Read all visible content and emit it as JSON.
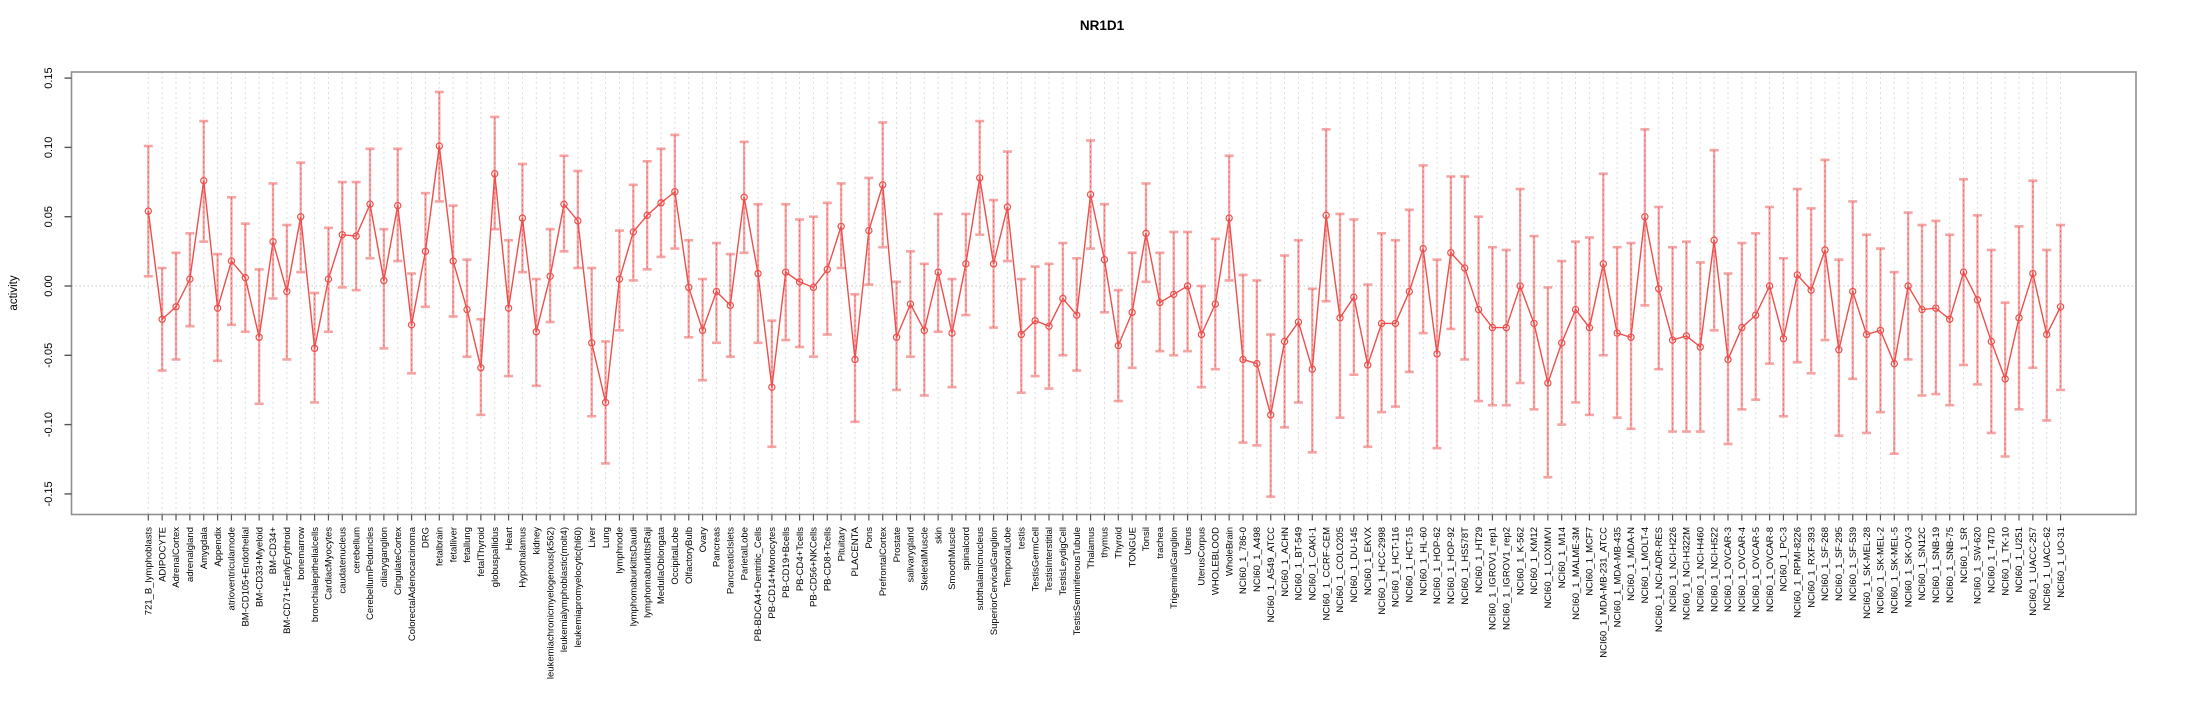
{
  "page": {
    "title": "NR1D1"
  },
  "chart_data": {
    "type": "line",
    "title": "NR1D1",
    "xlabel": "",
    "ylabel": "activity",
    "ylim": [
      -0.165,
      0.155
    ],
    "grid": "vertical dashed gridline per category; dotted horizontal line at y=0",
    "legend": "none",
    "marker": "open-circle with vertical error bars and caps",
    "series_color": "#ee4f4c",
    "errorbar_color": "#f5a3a3",
    "grid_color": "#dcdcdc",
    "box_color": "#8f8f8f",
    "ytick_values": [
      -0.15,
      -0.1,
      -0.05,
      0.0,
      0.05,
      0.1,
      0.15
    ],
    "ytick_labels": [
      "-0.15",
      "-0.10",
      "-0.05",
      "0.00",
      "0.05",
      "0.10",
      "0.15"
    ],
    "categories": [
      "721_B_lymphoblasts",
      "ADIPOCYTE",
      "AdrenalCortex",
      "adrenalgland",
      "Amygdala",
      "Appendix",
      "atrioventricularnode",
      "BM-CD105+Endothelial",
      "BM-CD33+Myeloid",
      "BM-CD34+",
      "BM-CD71+EarlyErythroid",
      "bonemarrow",
      "bronchialepithelialcells",
      "CardiacMyocytes",
      "caudatenucleus",
      "cerebellum",
      "CerebellumPeduncles",
      "ciliaryganglion",
      "CingulateCortex",
      "ColorectalAdenocarcinoma",
      "DRG",
      "fetalbrain",
      "fetalliver",
      "fetallung",
      "fetalThyroid",
      "globuspallidus",
      "Heart",
      "Hypothalamus",
      "kidney",
      "leukemiachronicmyelogenous(k562)",
      "leukemialymphoblastic(molt4)",
      "leukemiapromyelocytic(hl60)",
      "Liver",
      "Lung",
      "lymphnode",
      "lymphomaburkittsDaudi",
      "lymphomaburkittsRaji",
      "MedullaOblongata",
      "OccipitalLobe",
      "OlfactoryBulb",
      "Ovary",
      "Pancreas",
      "PancreaticIslets",
      "ParietalLobe",
      "PB-BDCA4+Dentritic_Cells",
      "PB-CD14+Monocytes",
      "PB-CD19+Bcells",
      "PB-CD4+Tcells",
      "PB-CD56+NKCells",
      "PB-CD8+Tcells",
      "Pituitary",
      "PLACENTA",
      "Pons",
      "PrefrontalCortex",
      "Prostate",
      "salivarygland",
      "SkeletalMuscle",
      "skin",
      "SmoothMuscle",
      "spinalcord",
      "subthalamicnucleus",
      "SuperiorCervicalGanglion",
      "TemporalLobe",
      "testis",
      "TestisGermCell",
      "TestisInterstitial",
      "TestisLeydigCell",
      "TestisSeminiferousTubule",
      "Thalamus",
      "thymus",
      "Thyroid",
      "TONGUE",
      "Tonsil",
      "trachea",
      "TrigeminalGanglion",
      "Uterus",
      "UterusCorpus",
      "WHOLEBLOOD",
      "WholeBrain",
      "NCI60_1_786-0",
      "NCI60_1_A498",
      "NCI60_1_A549_ATCC",
      "NCI60_1_ACHN",
      "NCI60_1_BT-549",
      "NCI60_1_CAKI-1",
      "NCI60_1_CCRF-CEM",
      "NCI60_1_COLO205",
      "NCI60_1_DU-145",
      "NCI60_1_EKVX",
      "NCI60_1_HCC-2998",
      "NCI60_1_HCT-116",
      "NCI60_1_HCT-15",
      "NCI60_1_HL-60",
      "NCI60_1_HOP-62",
      "NCI60_1_HOP-92",
      "NCI60_1_HS578T",
      "NCI60_1_HT29",
      "NCI60_1_IGROV1_rep1",
      "NCI60_1_IGROV1_rep2",
      "NCI60_1_K-562",
      "NCI60_1_KM12",
      "NCI60_1_LOXIMVI",
      "NCI60_1_M14",
      "NCI60_1_MALME-3M",
      "NCI60_1_MCF7",
      "NCI60_1_MDA-MB-231_ATCC",
      "NCI60_1_MDA-MB-435",
      "NCI60_1_MDA-N",
      "NCI60_1_MOLT-4",
      "NCI60_1_NCI-ADR-RES",
      "NCI60_1_NCI-H226",
      "NCI60_1_NCI-H322M",
      "NCI60_1_NCI-H460",
      "NCI60_1_NCI-H522",
      "NCI60_1_OVCAR-3",
      "NCI60_1_OVCAR-4",
      "NCI60_1_OVCAR-5",
      "NCI60_1_OVCAR-8",
      "NCI60_1_PC-3",
      "NCI60_1_RPMI-8226",
      "NCI60_1_RXF-393",
      "NCI60_1_SF-268",
      "NCI60_1_SF-295",
      "NCI60_1_SF-539",
      "NCI60_1_SK-MEL-28",
      "NCI60_1_SK-MEL-2",
      "NCI60_1_SK-MEL-5",
      "NCI60_1_SK-OV-3",
      "NCI60_1_SN12C",
      "NCI60_1_SNB-19",
      "NCI60_1_SNB-75",
      "NCI60_1_SR",
      "NCI60_1_SW-620",
      "NCI60_1_T47D",
      "NCI60_1_TK-10",
      "NCI60_1_U251",
      "NCI60_1_UACC-257",
      "NCI60_1_UACC-62",
      "NCI60_1_UO-31"
    ],
    "series": [
      {
        "name": "activity",
        "values": [
          0.054,
          -0.024,
          -0.015,
          0.005,
          0.076,
          -0.016,
          0.018,
          0.006,
          -0.037,
          0.032,
          -0.004,
          0.05,
          -0.045,
          0.005,
          0.037,
          0.036,
          0.059,
          0.004,
          0.058,
          -0.028,
          0.025,
          0.101,
          0.018,
          -0.017,
          -0.059,
          0.081,
          -0.016,
          0.049,
          -0.033,
          0.007,
          0.059,
          0.047,
          -0.041,
          -0.084,
          0.005,
          0.039,
          0.051,
          0.06,
          0.068,
          -0.001,
          -0.032,
          -0.004,
          -0.014,
          0.064,
          0.009,
          -0.073,
          0.01,
          0.003,
          -0.001,
          0.012,
          0.043,
          -0.053,
          0.04,
          0.073,
          -0.037,
          -0.013,
          -0.032,
          0.01,
          -0.034,
          0.016,
          0.078,
          0.016,
          0.057,
          -0.035,
          -0.025,
          -0.029,
          -0.009,
          -0.021,
          0.066,
          0.019,
          -0.043,
          -0.019,
          0.038,
          -0.012,
          -0.006,
          0.0,
          -0.035,
          -0.013,
          0.049,
          -0.053,
          -0.056,
          -0.093,
          -0.04,
          -0.026,
          -0.06,
          0.051,
          -0.023,
          -0.008,
          -0.057,
          -0.027,
          -0.027,
          -0.004,
          0.027,
          -0.049,
          0.024,
          0.013,
          -0.017,
          -0.03,
          -0.03,
          0.0,
          -0.027,
          -0.07,
          -0.041,
          -0.017,
          -0.03,
          0.016,
          -0.034,
          -0.037,
          0.05,
          -0.002,
          -0.039,
          -0.036,
          -0.044,
          0.033,
          -0.053,
          -0.03,
          -0.021,
          0.0,
          -0.038,
          0.008,
          -0.003,
          0.026,
          -0.046,
          -0.004,
          -0.035,
          -0.032,
          -0.056,
          0.0,
          -0.017,
          -0.016,
          -0.024,
          0.01,
          -0.01,
          -0.04,
          -0.067,
          -0.023,
          0.009,
          -0.035,
          -0.015
        ]
      },
      {
        "name": "lower",
        "values": [
          0.007,
          -0.061,
          -0.053,
          -0.029,
          0.032,
          -0.054,
          -0.028,
          -0.033,
          -0.085,
          -0.009,
          -0.053,
          0.01,
          -0.084,
          -0.033,
          -0.001,
          -0.003,
          0.02,
          -0.045,
          0.018,
          -0.063,
          -0.015,
          0.061,
          -0.022,
          -0.051,
          -0.093,
          0.041,
          -0.065,
          0.01,
          -0.072,
          -0.026,
          0.025,
          0.013,
          -0.094,
          -0.128,
          -0.032,
          0.004,
          0.012,
          0.021,
          0.027,
          -0.037,
          -0.068,
          -0.041,
          -0.051,
          0.024,
          -0.041,
          -0.116,
          -0.039,
          -0.044,
          -0.051,
          -0.035,
          0.013,
          -0.098,
          0.001,
          0.028,
          -0.075,
          -0.051,
          -0.079,
          -0.033,
          -0.073,
          -0.021,
          0.037,
          -0.03,
          0.018,
          -0.077,
          -0.065,
          -0.074,
          -0.05,
          -0.061,
          0.027,
          -0.019,
          -0.083,
          -0.059,
          0.003,
          -0.047,
          -0.05,
          -0.047,
          -0.073,
          -0.06,
          0.004,
          -0.113,
          -0.115,
          -0.152,
          -0.102,
          -0.084,
          -0.12,
          -0.011,
          -0.095,
          -0.064,
          -0.116,
          -0.091,
          -0.087,
          -0.062,
          -0.034,
          -0.117,
          -0.031,
          -0.053,
          -0.083,
          -0.086,
          -0.086,
          -0.07,
          -0.089,
          -0.138,
          -0.1,
          -0.084,
          -0.093,
          -0.05,
          -0.095,
          -0.103,
          -0.014,
          -0.06,
          -0.105,
          -0.105,
          -0.105,
          -0.032,
          -0.114,
          -0.089,
          -0.082,
          -0.056,
          -0.094,
          -0.055,
          -0.063,
          -0.039,
          -0.108,
          -0.067,
          -0.106,
          -0.091,
          -0.121,
          -0.053,
          -0.079,
          -0.078,
          -0.086,
          -0.057,
          -0.071,
          -0.106,
          -0.123,
          -0.089,
          -0.059,
          -0.097,
          -0.075
        ]
      },
      {
        "name": "upper",
        "values": [
          0.101,
          0.013,
          0.024,
          0.038,
          0.119,
          0.023,
          0.064,
          0.045,
          0.012,
          0.074,
          0.044,
          0.089,
          -0.005,
          0.042,
          0.075,
          0.075,
          0.099,
          0.041,
          0.099,
          0.009,
          0.067,
          0.14,
          0.058,
          0.019,
          -0.024,
          0.122,
          0.033,
          0.088,
          0.005,
          0.041,
          0.094,
          0.083,
          0.013,
          -0.04,
          0.04,
          0.073,
          0.09,
          0.099,
          0.109,
          0.033,
          0.005,
          0.031,
          0.023,
          0.104,
          0.059,
          -0.025,
          0.059,
          0.048,
          0.05,
          0.06,
          0.074,
          -0.006,
          0.078,
          0.118,
          0.003,
          0.025,
          0.016,
          0.052,
          0.005,
          0.052,
          0.119,
          0.062,
          0.097,
          0.005,
          0.014,
          0.016,
          0.031,
          0.02,
          0.105,
          0.059,
          -0.003,
          0.024,
          0.074,
          0.024,
          0.039,
          0.039,
          0.0,
          0.034,
          0.094,
          0.008,
          0.004,
          -0.035,
          0.022,
          0.033,
          -0.002,
          0.113,
          0.052,
          0.048,
          0.001,
          0.038,
          0.033,
          0.055,
          0.087,
          0.019,
          0.079,
          0.079,
          0.05,
          0.028,
          0.026,
          0.07,
          0.036,
          -0.001,
          0.018,
          0.032,
          0.035,
          0.081,
          0.028,
          0.031,
          0.113,
          0.057,
          0.028,
          0.032,
          0.017,
          0.098,
          0.009,
          0.031,
          0.038,
          0.057,
          0.02,
          0.07,
          0.056,
          0.091,
          0.019,
          0.061,
          0.037,
          0.027,
          0.01,
          0.053,
          0.044,
          0.047,
          0.037,
          0.077,
          0.051,
          0.026,
          -0.012,
          0.043,
          0.076,
          0.026,
          0.044
        ]
      }
    ]
  }
}
